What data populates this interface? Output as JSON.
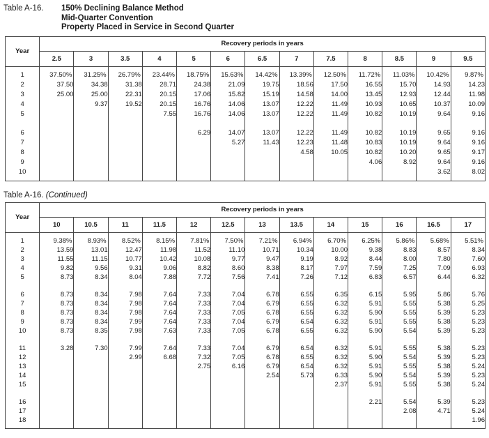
{
  "tables": [
    {
      "caption_prefix": "Table A-16.",
      "caption_title_lines": [
        "150% Declining Balance Method",
        "Mid-Quarter Convention",
        "Property Placed in Service in Second Quarter"
      ],
      "year_header": "Year",
      "group_header": "Recovery periods in years",
      "columns": [
        "2.5",
        "3",
        "3.5",
        "4",
        "5",
        "6",
        "6.5",
        "7",
        "7.5",
        "8",
        "8.5",
        "9",
        "9.5"
      ],
      "rows": [
        {
          "year": "1",
          "values": [
            "37.50%",
            "31.25%",
            "26.79%",
            "23.44%",
            "18.75%",
            "15.63%",
            "14.42%",
            "13.39%",
            "12.50%",
            "11.72%",
            "11.03%",
            "10.42%",
            "9.87%"
          ]
        },
        {
          "year": "2",
          "values": [
            "37.50",
            "34.38",
            "31.38",
            "28.71",
            "24.38",
            "21.09",
            "19.75",
            "18.56",
            "17.50",
            "16.55",
            "15.70",
            "14.93",
            "14.23"
          ]
        },
        {
          "year": "3",
          "values": [
            "25.00",
            "25.00",
            "22.31",
            "20.15",
            "17.06",
            "15.82",
            "15.19",
            "14.58",
            "14.00",
            "13.45",
            "12.93",
            "12.44",
            "11.98"
          ]
        },
        {
          "year": "4",
          "values": [
            "",
            "9.37",
            "19.52",
            "20.15",
            "16.76",
            "14.06",
            "13.07",
            "12.22",
            "11.49",
            "10.93",
            "10.65",
            "10.37",
            "10.09"
          ]
        },
        {
          "year": "5",
          "values": [
            "",
            "",
            "",
            "7.55",
            "16.76",
            "14.06",
            "13.07",
            "12.22",
            "11.49",
            "10.82",
            "10.19",
            "9.64",
            "9.16"
          ]
        },
        {
          "year": "6",
          "values": [
            "",
            "",
            "",
            "",
            "6.29",
            "14.07",
            "13.07",
            "12.22",
            "11.49",
            "10.82",
            "10.19",
            "9.65",
            "9.16"
          ]
        },
        {
          "year": "7",
          "values": [
            "",
            "",
            "",
            "",
            "",
            "5.27",
            "11.43",
            "12.23",
            "11.48",
            "10.83",
            "10.19",
            "9.64",
            "9.16"
          ]
        },
        {
          "year": "8",
          "values": [
            "",
            "",
            "",
            "",
            "",
            "",
            "",
            "4.58",
            "10.05",
            "10.82",
            "10.20",
            "9.65",
            "9.17"
          ]
        },
        {
          "year": "9",
          "values": [
            "",
            "",
            "",
            "",
            "",
            "",
            "",
            "",
            "",
            "4.06",
            "8.92",
            "9.64",
            "9.16"
          ]
        },
        {
          "year": "10",
          "values": [
            "",
            "",
            "",
            "",
            "",
            "",
            "",
            "",
            "",
            "",
            "",
            "3.62",
            "8.02"
          ]
        }
      ],
      "gaps_after": [
        "5"
      ]
    },
    {
      "caption_prefix": "Table A-16.",
      "caption_suffix_italic": "(Continued)",
      "year_header": "Year",
      "group_header": "Recovery periods in years",
      "columns": [
        "10",
        "10.5",
        "11",
        "11.5",
        "12",
        "12.5",
        "13",
        "13.5",
        "14",
        "15",
        "16",
        "16.5",
        "17"
      ],
      "rows": [
        {
          "year": "1",
          "values": [
            "9.38%",
            "8.93%",
            "8.52%",
            "8.15%",
            "7.81%",
            "7.50%",
            "7.21%",
            "6.94%",
            "6.70%",
            "6.25%",
            "5.86%",
            "5.68%",
            "5.51%"
          ]
        },
        {
          "year": "2",
          "values": [
            "13.59",
            "13.01",
            "12.47",
            "11.98",
            "11.52",
            "11.10",
            "10.71",
            "10.34",
            "10.00",
            "9.38",
            "8.83",
            "8.57",
            "8.34"
          ]
        },
        {
          "year": "3",
          "values": [
            "11.55",
            "11.15",
            "10.77",
            "10.42",
            "10.08",
            "9.77",
            "9.47",
            "9.19",
            "8.92",
            "8.44",
            "8.00",
            "7.80",
            "7.60"
          ]
        },
        {
          "year": "4",
          "values": [
            "9.82",
            "9.56",
            "9.31",
            "9.06",
            "8.82",
            "8.60",
            "8.38",
            "8.17",
            "7.97",
            "7.59",
            "7.25",
            "7.09",
            "6.93"
          ]
        },
        {
          "year": "5",
          "values": [
            "8.73",
            "8.34",
            "8.04",
            "7.88",
            "7.72",
            "7.56",
            "7.41",
            "7.26",
            "7.12",
            "6.83",
            "6.57",
            "6.44",
            "6.32"
          ]
        },
        {
          "year": "6",
          "values": [
            "8.73",
            "8.34",
            "7.98",
            "7.64",
            "7.33",
            "7.04",
            "6.78",
            "6.55",
            "6.35",
            "6.15",
            "5.95",
            "5.86",
            "5.76"
          ]
        },
        {
          "year": "7",
          "values": [
            "8.73",
            "8.34",
            "7.98",
            "7.64",
            "7.33",
            "7.04",
            "6.79",
            "6.55",
            "6.32",
            "5.91",
            "5.55",
            "5.38",
            "5.25"
          ]
        },
        {
          "year": "8",
          "values": [
            "8.73",
            "8.34",
            "7.98",
            "7.64",
            "7.33",
            "7.05",
            "6.78",
            "6.55",
            "6.32",
            "5.90",
            "5.55",
            "5.39",
            "5.23"
          ]
        },
        {
          "year": "9",
          "values": [
            "8.73",
            "8.34",
            "7.99",
            "7.64",
            "7.33",
            "7.04",
            "6.79",
            "6.54",
            "6.32",
            "5.91",
            "5.55",
            "5.38",
            "5.23"
          ]
        },
        {
          "year": "10",
          "values": [
            "8.73",
            "8.35",
            "7.98",
            "7.63",
            "7.33",
            "7.05",
            "6.78",
            "6.55",
            "6.32",
            "5.90",
            "5.54",
            "5.39",
            "5.23"
          ]
        },
        {
          "year": "11",
          "values": [
            "3.28",
            "7.30",
            "7.99",
            "7.64",
            "7.33",
            "7.04",
            "6.79",
            "6.54",
            "6.32",
            "5.91",
            "5.55",
            "5.38",
            "5.23"
          ]
        },
        {
          "year": "12",
          "values": [
            "",
            "",
            "2.99",
            "6.68",
            "7.32",
            "7.05",
            "6.78",
            "6.55",
            "6.32",
            "5.90",
            "5.54",
            "5.39",
            "5.23"
          ]
        },
        {
          "year": "13",
          "values": [
            "",
            "",
            "",
            "",
            "2.75",
            "6.16",
            "6.79",
            "6.54",
            "6.32",
            "5.91",
            "5.55",
            "5.38",
            "5.24"
          ]
        },
        {
          "year": "14",
          "values": [
            "",
            "",
            "",
            "",
            "",
            "",
            "2.54",
            "5.73",
            "6.33",
            "5.90",
            "5.54",
            "5.39",
            "5.23"
          ]
        },
        {
          "year": "15",
          "values": [
            "",
            "",
            "",
            "",
            "",
            "",
            "",
            "",
            "2.37",
            "5.91",
            "5.55",
            "5.38",
            "5.24"
          ]
        },
        {
          "year": "16",
          "values": [
            "",
            "",
            "",
            "",
            "",
            "",
            "",
            "",
            "",
            "2.21",
            "5.54",
            "5.39",
            "5.23"
          ]
        },
        {
          "year": "17",
          "values": [
            "",
            "",
            "",
            "",
            "",
            "",
            "",
            "",
            "",
            "",
            "2.08",
            "4.71",
            "5.24"
          ]
        },
        {
          "year": "18",
          "values": [
            "",
            "",
            "",
            "",
            "",
            "",
            "",
            "",
            "",
            "",
            "",
            "",
            "1.96"
          ]
        }
      ],
      "gaps_after": [
        "5",
        "10",
        "15"
      ]
    }
  ]
}
